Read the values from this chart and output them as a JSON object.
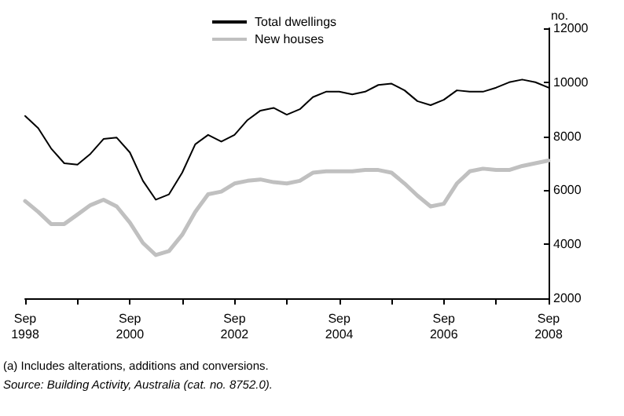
{
  "chart_data": {
    "type": "line",
    "ylabel": "no.",
    "x": [
      "1998-09",
      "1998-12",
      "1999-03",
      "1999-06",
      "1999-09",
      "1999-12",
      "2000-03",
      "2000-06",
      "2000-09",
      "2000-12",
      "2001-03",
      "2001-06",
      "2001-09",
      "2001-12",
      "2002-03",
      "2002-06",
      "2002-09",
      "2002-12",
      "2003-03",
      "2003-06",
      "2003-09",
      "2003-12",
      "2004-03",
      "2004-06",
      "2004-09",
      "2004-12",
      "2005-03",
      "2005-06",
      "2005-09",
      "2005-12",
      "2006-03",
      "2006-06",
      "2006-09",
      "2006-12",
      "2007-03",
      "2007-06",
      "2007-09",
      "2007-12",
      "2008-03",
      "2008-06",
      "2008-09"
    ],
    "series": [
      {
        "name": "Total dwellings",
        "color": "#000000",
        "values": [
          8750,
          8300,
          7550,
          7000,
          6950,
          7350,
          7900,
          7950,
          7400,
          6350,
          5650,
          5850,
          6650,
          7700,
          8050,
          7800,
          8050,
          8600,
          8950,
          9050,
          8800,
          9000,
          9450,
          9650,
          9650,
          9550,
          9650,
          9900,
          9950,
          9700,
          9300,
          9150,
          9350,
          9700,
          9650,
          9650,
          9800,
          10000,
          10100,
          10000,
          9800
        ]
      },
      {
        "name": "New houses",
        "color": "#c0c0c0",
        "values": [
          5600,
          5200,
          4750,
          4750,
          5100,
          5450,
          5650,
          5400,
          4800,
          4050,
          3600,
          3750,
          4350,
          5200,
          5850,
          5950,
          6250,
          6350,
          6400,
          6300,
          6250,
          6350,
          6650,
          6700,
          6700,
          6700,
          6750,
          6750,
          6650,
          6250,
          5800,
          5400,
          5500,
          6250,
          6700,
          6800,
          6750,
          6750,
          6900,
          7000,
          7100
        ]
      }
    ],
    "xlim": [
      "1998-09",
      "2008-09"
    ],
    "xticks": [
      {
        "value": "1998-09",
        "label": "Sep\n1998"
      },
      {
        "value": "1999-09",
        "label": null
      },
      {
        "value": "2000-09",
        "label": "Sep\n2000"
      },
      {
        "value": "2001-09",
        "label": null
      },
      {
        "value": "2002-09",
        "label": "Sep\n2002"
      },
      {
        "value": "2003-09",
        "label": null
      },
      {
        "value": "2004-09",
        "label": "Sep\n2004"
      },
      {
        "value": "2005-09",
        "label": null
      },
      {
        "value": "2006-09",
        "label": "Sep\n2006"
      },
      {
        "value": "2007-09",
        "label": null
      },
      {
        "value": "2008-09",
        "label": "Sep\n2008"
      }
    ],
    "ylim": [
      2000,
      12000
    ],
    "yticks": [
      2000,
      4000,
      6000,
      8000,
      10000,
      12000
    ],
    "grid": false,
    "legend": "top",
    "marker": "none",
    "line_style": "solid",
    "annotations": [
      "(a) Includes alterations, additions and conversions.",
      "Source: Building Activity, Australia (cat. no. 8752.0)."
    ]
  }
}
